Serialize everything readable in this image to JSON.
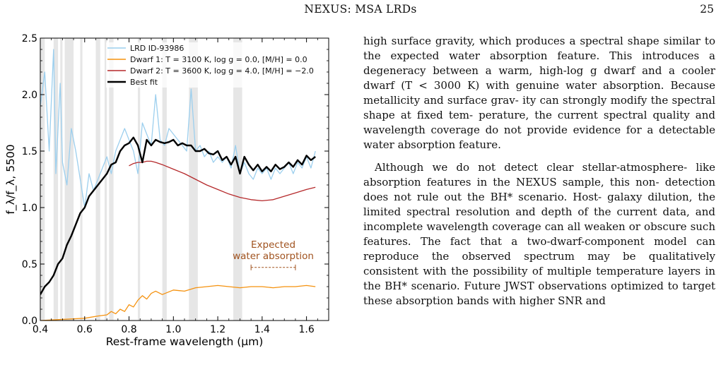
{
  "header": {
    "title": "NEXUS: MSA LRDs",
    "page": "25"
  },
  "chart_data": {
    "type": "line",
    "xlabel": "Rest-frame wavelength (μm)",
    "ylabel": "f_λ/f_λ, 5500",
    "xlim": [
      0.4,
      1.7
    ],
    "ylim": [
      0,
      2.5
    ],
    "xticks": [
      "0.4",
      "0.6",
      "0.8",
      "1.0",
      "1.2",
      "1.4",
      "1.6"
    ],
    "yticks": [
      "0.0",
      "0.5",
      "1.0",
      "1.5",
      "2.0",
      "2.5"
    ],
    "legend_position": "top-right",
    "series": [
      {
        "name": "LRD ID-93986",
        "color": "#9ccfee",
        "x": [
          0.4,
          0.42,
          0.44,
          0.46,
          0.47,
          0.49,
          0.5,
          0.52,
          0.54,
          0.56,
          0.58,
          0.6,
          0.62,
          0.64,
          0.66,
          0.68,
          0.7,
          0.72,
          0.74,
          0.76,
          0.78,
          0.8,
          0.82,
          0.84,
          0.86,
          0.88,
          0.9,
          0.92,
          0.94,
          0.96,
          0.98,
          1.0,
          1.02,
          1.04,
          1.06,
          1.08,
          1.1,
          1.12,
          1.14,
          1.16,
          1.18,
          1.2,
          1.22,
          1.24,
          1.26,
          1.28,
          1.3,
          1.32,
          1.34,
          1.36,
          1.38,
          1.4,
          1.42,
          1.44,
          1.46,
          1.48,
          1.5,
          1.52,
          1.54,
          1.56,
          1.58,
          1.6,
          1.62,
          1.64
        ],
        "y": [
          1.9,
          2.2,
          1.5,
          2.4,
          1.3,
          2.1,
          1.4,
          1.2,
          1.7,
          1.5,
          1.25,
          1.0,
          1.3,
          1.15,
          1.25,
          1.35,
          1.45,
          1.3,
          1.5,
          1.6,
          1.7,
          1.6,
          1.5,
          1.3,
          1.75,
          1.65,
          1.55,
          2.0,
          1.6,
          1.55,
          1.7,
          1.65,
          1.6,
          1.55,
          1.5,
          2.05,
          1.5,
          1.55,
          1.45,
          1.5,
          1.4,
          1.45,
          1.4,
          1.45,
          1.35,
          1.55,
          1.3,
          1.4,
          1.3,
          1.25,
          1.35,
          1.3,
          1.35,
          1.25,
          1.35,
          1.3,
          1.35,
          1.4,
          1.3,
          1.4,
          1.35,
          1.45,
          1.35,
          1.5
        ]
      },
      {
        "name": "Dwarf 1: T = 3100 K, log g = 0.0, [M/H] = 0.0",
        "color": "#f5920f",
        "x": [
          0.4,
          0.5,
          0.6,
          0.66,
          0.7,
          0.72,
          0.74,
          0.76,
          0.78,
          0.8,
          0.82,
          0.84,
          0.86,
          0.88,
          0.9,
          0.92,
          0.95,
          1.0,
          1.05,
          1.1,
          1.15,
          1.2,
          1.25,
          1.3,
          1.35,
          1.4,
          1.45,
          1.5,
          1.55,
          1.6,
          1.64
        ],
        "y": [
          0.0,
          0.01,
          0.02,
          0.04,
          0.05,
          0.08,
          0.06,
          0.1,
          0.08,
          0.14,
          0.12,
          0.18,
          0.22,
          0.19,
          0.24,
          0.26,
          0.23,
          0.27,
          0.26,
          0.29,
          0.3,
          0.31,
          0.3,
          0.29,
          0.3,
          0.3,
          0.29,
          0.3,
          0.3,
          0.31,
          0.3
        ]
      },
      {
        "name": "Dwarf 2: T = 3600 K, log g = 4.0, [M/H] = −2.0",
        "color": "#b5292b",
        "x": [
          0.8,
          0.82,
          0.84,
          0.86,
          0.88,
          0.9,
          0.92,
          0.95,
          1.0,
          1.05,
          1.1,
          1.15,
          1.2,
          1.25,
          1.3,
          1.35,
          1.4,
          1.45,
          1.5,
          1.55,
          1.6,
          1.64
        ],
        "y": [
          1.37,
          1.39,
          1.4,
          1.4,
          1.41,
          1.41,
          1.4,
          1.38,
          1.34,
          1.3,
          1.25,
          1.2,
          1.16,
          1.12,
          1.09,
          1.07,
          1.06,
          1.07,
          1.1,
          1.13,
          1.16,
          1.18
        ]
      },
      {
        "name": "Best fit",
        "color": "#000000",
        "x": [
          0.4,
          0.42,
          0.44,
          0.46,
          0.48,
          0.5,
          0.52,
          0.54,
          0.56,
          0.58,
          0.6,
          0.62,
          0.64,
          0.66,
          0.68,
          0.7,
          0.72,
          0.74,
          0.76,
          0.78,
          0.8,
          0.82,
          0.84,
          0.86,
          0.88,
          0.9,
          0.92,
          0.94,
          0.96,
          0.98,
          1.0,
          1.02,
          1.04,
          1.06,
          1.08,
          1.1,
          1.12,
          1.14,
          1.16,
          1.18,
          1.2,
          1.22,
          1.24,
          1.26,
          1.28,
          1.3,
          1.32,
          1.34,
          1.36,
          1.38,
          1.4,
          1.42,
          1.44,
          1.46,
          1.48,
          1.5,
          1.52,
          1.54,
          1.56,
          1.58,
          1.6,
          1.62,
          1.64
        ],
        "y": [
          0.23,
          0.3,
          0.34,
          0.4,
          0.5,
          0.55,
          0.67,
          0.75,
          0.85,
          0.95,
          1.0,
          1.1,
          1.15,
          1.2,
          1.25,
          1.3,
          1.38,
          1.4,
          1.5,
          1.55,
          1.57,
          1.62,
          1.55,
          1.4,
          1.6,
          1.55,
          1.6,
          1.58,
          1.57,
          1.58,
          1.6,
          1.55,
          1.57,
          1.55,
          1.55,
          1.5,
          1.5,
          1.52,
          1.48,
          1.47,
          1.5,
          1.42,
          1.45,
          1.38,
          1.45,
          1.3,
          1.45,
          1.38,
          1.33,
          1.38,
          1.32,
          1.36,
          1.32,
          1.38,
          1.34,
          1.36,
          1.4,
          1.36,
          1.42,
          1.38,
          1.46,
          1.42,
          1.45
        ]
      }
    ],
    "masked_regions": [
      [
        0.4,
        0.42
      ],
      [
        0.46,
        0.48
      ],
      [
        0.49,
        0.5
      ],
      [
        0.51,
        0.55
      ],
      [
        0.58,
        0.59
      ],
      [
        0.65,
        0.67
      ],
      [
        0.69,
        0.7
      ],
      [
        0.71,
        0.73
      ],
      [
        0.84,
        0.85
      ],
      [
        0.95,
        0.97
      ],
      [
        1.07,
        1.11
      ],
      [
        1.27,
        1.31
      ]
    ],
    "annotation": {
      "line1": "Expected",
      "line2": "water absorption",
      "x_range": [
        1.35,
        1.55
      ],
      "y": 0.47,
      "color": "#a0521e"
    }
  },
  "body": {
    "paragraphs": [
      {
        "lines": [
          "high surface gravity, which produces a spectral shape",
          "similar to the expected water absorption feature. This",
          "introduces a degeneracy between a warm, high-log g",
          "dwarf and a cooler dwarf (T < 3000 K) with genuine",
          "water absorption. Because metallicity and surface grav-",
          "ity can strongly modify the spectral shape at fixed tem-",
          "perature, the current spectral quality and wavelength",
          "coverage do not provide evidence for a detectable water",
          "absorption feature."
        ]
      },
      {
        "lines": [
          "Although we do not detect clear stellar-atmosphere-",
          "like absorption features in the NEXUS sample, this non-",
          "detection does not rule out the BH* scenario. Host-",
          "galaxy dilution, the limited spectral resolution and",
          "depth of the current data, and incomplete wavelength",
          "coverage can all weaken or obscure such features. The",
          "fact that a two-dwarf-component model can reproduce",
          "the observed spectrum may be qualitatively consistent",
          "with the possibility of multiple temperature layers in",
          "the BH* scenario. Future JWST observations optimized",
          "to target these absorption bands with higher SNR and"
        ]
      }
    ]
  }
}
